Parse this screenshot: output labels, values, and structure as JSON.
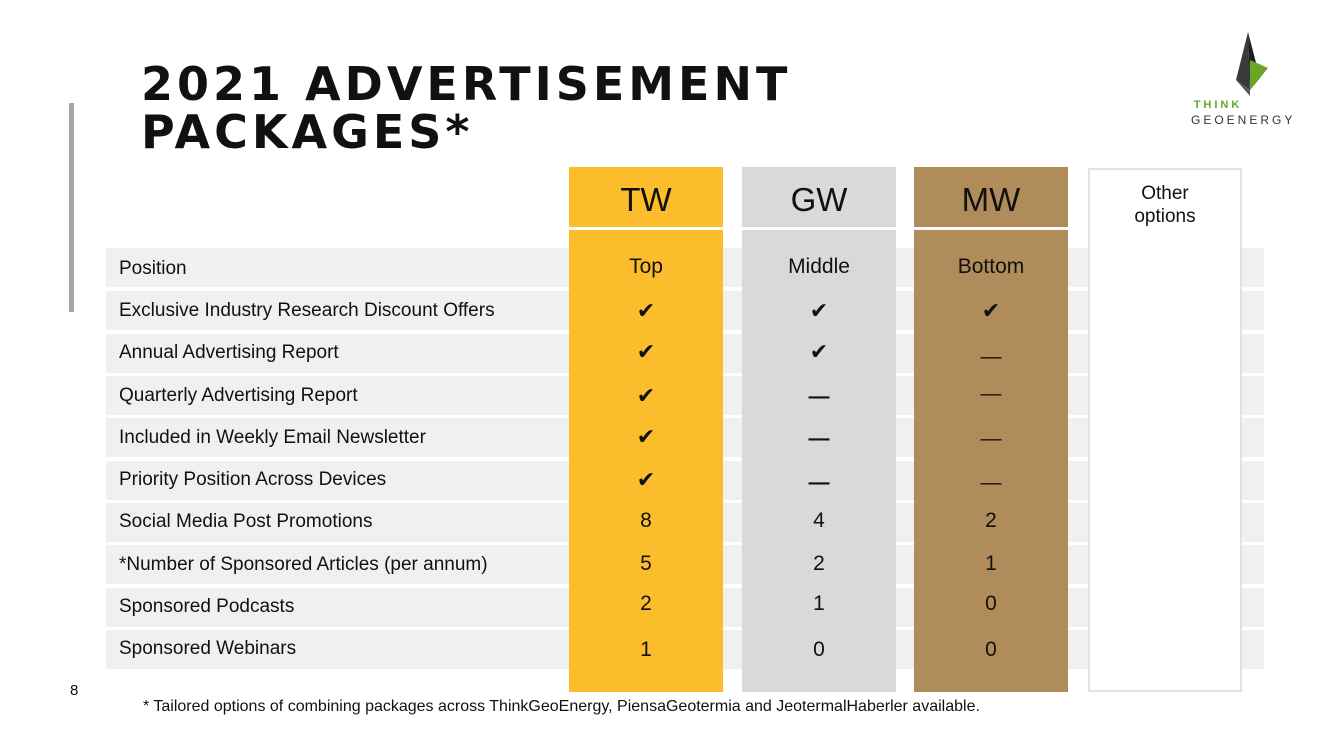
{
  "title": {
    "line1": "2021 ADVERTISEMENT",
    "line2": "PACKAGES*"
  },
  "logo": {
    "line1": "THINK",
    "line2": "GEOENERGY"
  },
  "columns": {
    "tw": "TW",
    "gw": "GW",
    "mw": "MW",
    "other_line1": "Other",
    "other_line2": "options"
  },
  "rows": [
    {
      "label": "Position",
      "tw": "Top",
      "gw": "Middle",
      "mw": "Bottom"
    },
    {
      "label": "Exclusive Industry Research Discount Offers",
      "tw": "✔",
      "gw": "✔",
      "mw": "✔"
    },
    {
      "label": "Annual Advertising Report",
      "tw": "✔",
      "gw": "✔",
      "mw": "—"
    },
    {
      "label": "Quarterly Advertising Report",
      "tw": "✔",
      "gw": "—",
      "mw": "—"
    },
    {
      "label": "Included in Weekly Email Newsletter",
      "tw": "✔",
      "gw": "—",
      "mw": "—"
    },
    {
      "label": "Priority Position Across Devices",
      "tw": "✔",
      "gw": "—",
      "mw": "—"
    },
    {
      "label": "Social Media Post Promotions",
      "tw": "8",
      "gw": "4",
      "mw": "2"
    },
    {
      "label": "*Number of Sponsored Articles (per annum)",
      "tw": "5",
      "gw": "2",
      "mw": "1"
    },
    {
      "label": "Sponsored Podcasts",
      "tw": "2",
      "gw": "1",
      "mw": "0"
    },
    {
      "label": "Sponsored Webinars",
      "tw": "1",
      "gw": "0",
      "mw": "0"
    }
  ],
  "page_number": "8",
  "footnote": "* Tailored options of combining packages across ThinkGeoEnergy, PiensaGeotermia and JeotermalHaberler available.",
  "colors": {
    "tw": "#fbbd2c",
    "gw": "#d9d9d9",
    "mw": "#b08c5a",
    "row_bg": "#f0f0f0",
    "logo_green": "#6aa528"
  }
}
